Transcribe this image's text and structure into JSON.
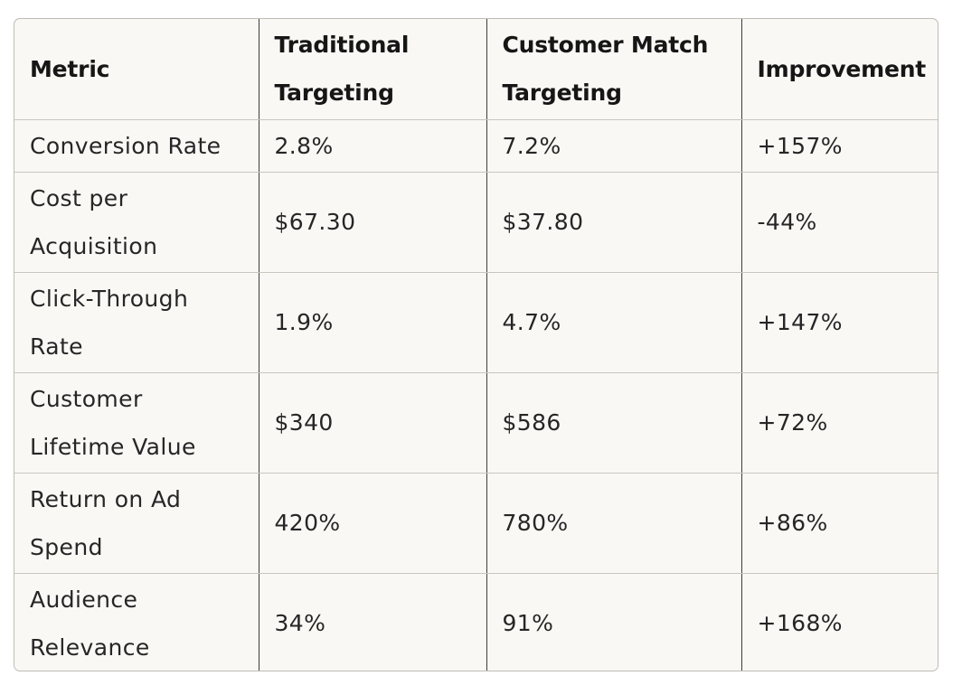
{
  "table": {
    "headers": [
      "Metric",
      "Traditional Targeting",
      "Customer Match Targeting",
      "Improvement"
    ],
    "rows": [
      {
        "metric": "Conversion Rate",
        "traditional": "2.8%",
        "customer_match": "7.2%",
        "improvement": "+157%"
      },
      {
        "metric": "Cost per Acquisition",
        "traditional": "$67.30",
        "customer_match": "$37.80",
        "improvement": "-44%"
      },
      {
        "metric": "Click-Through Rate",
        "traditional": "1.9%",
        "customer_match": "4.7%",
        "improvement": "+147%"
      },
      {
        "metric": "Customer Lifetime Value",
        "traditional": "$340",
        "customer_match": "$586",
        "improvement": "+72%"
      },
      {
        "metric": "Return on Ad Spend",
        "traditional": "420%",
        "customer_match": "780%",
        "improvement": "+86%"
      },
      {
        "metric": "Audience Relevance",
        "traditional": "34%",
        "customer_match": "91%",
        "improvement": "+168%"
      }
    ]
  }
}
